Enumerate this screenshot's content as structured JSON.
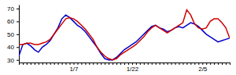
{
  "chart_data": {
    "type": "line",
    "categories": [
      null,
      null,
      null,
      null,
      null,
      null,
      null,
      null,
      null,
      null,
      null,
      null,
      null,
      null,
      "1/7",
      null,
      null,
      null,
      null,
      null,
      null,
      null,
      null,
      null,
      null,
      null,
      null,
      null,
      null,
      "1/22",
      null,
      null,
      null,
      null,
      null,
      null,
      null,
      null,
      null,
      null,
      null,
      null,
      null,
      null,
      null,
      null,
      null,
      "2/5",
      null,
      null,
      null,
      null,
      null,
      null,
      null
    ],
    "series": [
      {
        "color": "#0000cc",
        "values": [
          33,
          42,
          43,
          41,
          38,
          36,
          40,
          42,
          45,
          50,
          55,
          62,
          65,
          63,
          60,
          57,
          55,
          52,
          48,
          44,
          40,
          35,
          31,
          30,
          30,
          32,
          35,
          38,
          40,
          42,
          44,
          47,
          50,
          53,
          56,
          57,
          55,
          54,
          52,
          53,
          55,
          56,
          55,
          57,
          59,
          58,
          56,
          53,
          50,
          48,
          46,
          44,
          45,
          46,
          47
        ]
      },
      {
        "color": "#cc0000",
        "values": [
          42,
          42,
          43,
          43,
          42,
          42,
          43,
          44,
          46,
          50,
          54,
          58,
          62,
          63,
          62,
          60,
          57,
          54,
          50,
          46,
          40,
          36,
          33,
          31,
          30,
          31,
          34,
          36,
          38,
          40,
          42,
          45,
          48,
          52,
          55,
          57,
          55,
          53,
          51,
          53,
          55,
          57,
          59,
          69,
          65,
          58,
          55,
          54,
          55,
          60,
          62,
          62,
          59,
          55,
          47
        ]
      }
    ],
    "ylim": [
      28,
      73
    ],
    "yticks": [
      30,
      40,
      50,
      60,
      70
    ],
    "grid": false
  }
}
